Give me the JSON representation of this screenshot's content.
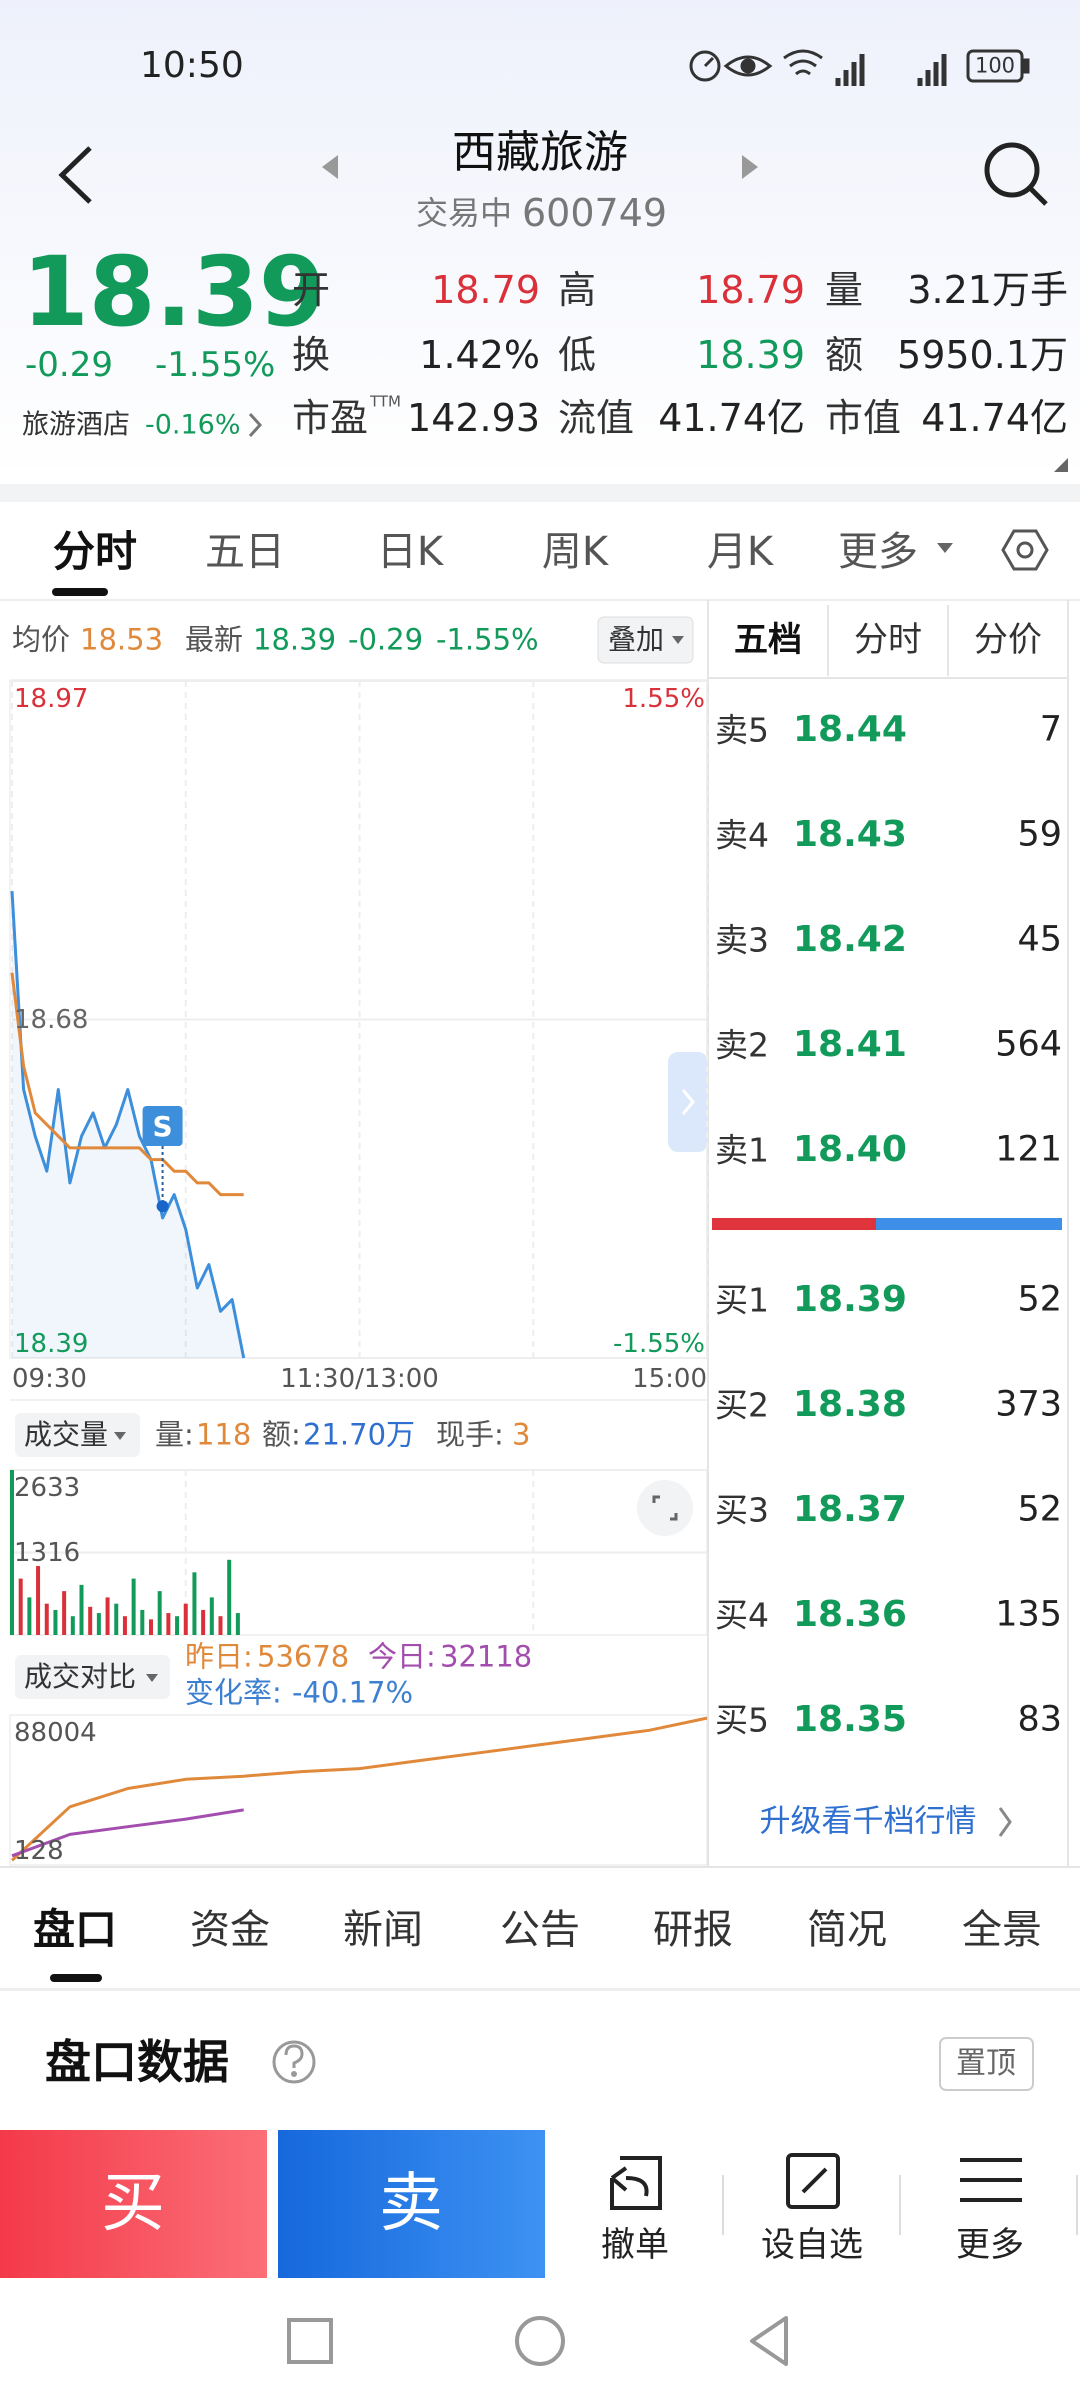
{
  "status_bar": {
    "time": "10:50",
    "battery": "100"
  },
  "header": {
    "title": "西藏旅游",
    "status": "交易中",
    "code": "600749"
  },
  "quote": {
    "price": "18.39",
    "change": "-0.29",
    "change_pct": "-1.55%",
    "sector": "旅游酒店",
    "sector_change": "-0.16%",
    "fields": [
      {
        "label": "开",
        "value": "18.79",
        "color": "#d9303a"
      },
      {
        "label": "高",
        "value": "18.79",
        "color": "#d9303a"
      },
      {
        "label": "量",
        "value": "3.21万手",
        "color": "#222222"
      },
      {
        "label": "换",
        "value": "1.42%",
        "color": "#222222"
      },
      {
        "label": "低",
        "value": "18.39",
        "color": "#129a5b"
      },
      {
        "label": "额",
        "value": "5950.1万",
        "color": "#222222"
      },
      {
        "label": "市盈",
        "sup": "TTM",
        "value": "142.93",
        "color": "#222222"
      },
      {
        "label": "流值",
        "value": "41.74亿",
        "color": "#222222"
      },
      {
        "label": "市值",
        "value": "41.74亿",
        "color": "#222222"
      }
    ]
  },
  "chart_tabs": [
    "分时",
    "五日",
    "日K",
    "周K",
    "月K",
    "更多"
  ],
  "info": {
    "avg": "18.53",
    "last": "18.39",
    "change": "-0.29",
    "change_pct": "-1.55%",
    "overlay": "叠加"
  },
  "chart_data": [
    {
      "type": "line",
      "x": [
        0,
        4,
        8,
        12,
        16,
        20,
        24,
        28,
        32,
        36,
        40,
        44,
        48,
        52,
        56,
        60,
        64,
        68,
        72,
        76,
        80
      ],
      "xlim": [
        0,
        240
      ],
      "xticks": [
        {
          "value": 0,
          "label": "09:30"
        },
        {
          "value": 120,
          "label": "11:30/13:00"
        },
        {
          "value": 240,
          "label": "15:00"
        }
      ],
      "ylim": [
        18.39,
        18.97
      ],
      "yticks": [
        18.97,
        18.68,
        18.39
      ],
      "y2lim": [
        -1.55,
        1.55
      ],
      "y2ticks": [
        {
          "value": 1.55,
          "label": "1.55%"
        },
        {
          "value": -1.55,
          "label": "-1.55%"
        }
      ],
      "grid": true,
      "area": true,
      "series": [
        {
          "name": "最新",
          "color": "#3d8fdb",
          "values": [
            18.79,
            18.62,
            18.58,
            18.55,
            18.62,
            18.54,
            18.58,
            18.6,
            18.57,
            18.59,
            18.62,
            18.58,
            18.56,
            18.51,
            18.53,
            18.5,
            18.45,
            18.47,
            18.43,
            18.44,
            18.39
          ]
        },
        {
          "name": "均价",
          "color": "#e0893b",
          "values": [
            18.72,
            18.64,
            18.6,
            18.59,
            18.58,
            18.57,
            18.57,
            18.57,
            18.57,
            18.57,
            18.57,
            18.57,
            18.56,
            18.56,
            18.55,
            18.55,
            18.54,
            18.54,
            18.53,
            18.53,
            18.53
          ]
        }
      ],
      "annotations": [
        {
          "text": "S",
          "x": 52,
          "y": 18.52
        }
      ]
    },
    {
      "type": "bar",
      "x": [
        0,
        3,
        6,
        9,
        12,
        15,
        18,
        21,
        24,
        27,
        30,
        33,
        36,
        39,
        42,
        45,
        48,
        51,
        54,
        57,
        60,
        63,
        66,
        69,
        72,
        75,
        78
      ],
      "values": [
        2633,
        900,
        600,
        1100,
        500,
        400,
        700,
        300,
        800,
        450,
        350,
        600,
        500,
        300,
        900,
        400,
        250,
        700,
        350,
        300,
        500,
        1000,
        400,
        600,
        300,
        1200,
        350
      ],
      "bar_colors": [
        "#129a5b",
        "#d9303a",
        "#129a5b",
        "#d9303a",
        "#d9303a",
        "#129a5b",
        "#d9303a",
        "#129a5b",
        "#129a5b",
        "#d9303a",
        "#129a5b",
        "#d9303a",
        "#129a5b",
        "#d9303a",
        "#129a5b",
        "#129a5b",
        "#d9303a",
        "#129a5b",
        "#d9303a",
        "#129a5b",
        "#d9303a",
        "#129a5b",
        "#d9303a",
        "#129a5b",
        "#d9303a",
        "#129a5b",
        "#129a5b"
      ],
      "xlim": [
        0,
        240
      ],
      "ylim": [
        0,
        2633
      ],
      "yticks": [
        2633,
        1316
      ],
      "grid": true
    },
    {
      "type": "line",
      "x": [
        0,
        20,
        40,
        60,
        80,
        100,
        120,
        140,
        160,
        180,
        200,
        220,
        240
      ],
      "xlim": [
        0,
        240
      ],
      "ylim": [
        128,
        88004
      ],
      "yticks": [
        88004,
        128
      ],
      "grid": false,
      "series": [
        {
          "name": "昨日:",
          "color": "#e0893b",
          "values": [
            2800,
            34200,
            44960,
            50340,
            52140,
            54830,
            56620,
            61100,
            65580,
            70070,
            74550,
            79040,
            86210
          ]
        },
        {
          "name": "今日:",
          "color": "#a34eae",
          "values": [
            5500,
            18060,
            22540,
            27030,
            32410,
            null,
            null,
            null,
            null,
            null,
            null,
            null,
            null
          ]
        }
      ]
    }
  ],
  "volume_info": {
    "selector": "成交量",
    "vol_label": "量:",
    "vol": "118",
    "amt_label": "额:",
    "amt": "21.70万",
    "hand_label": "现手:",
    "hand": "3"
  },
  "compare_info": {
    "selector": "成交对比",
    "yesterday": "53678",
    "today": "32118",
    "rate_label": "变化率:",
    "rate": "-40.17%"
  },
  "order_book": {
    "tabs": [
      "五档",
      "分时",
      "分价"
    ],
    "asks": [
      {
        "label": "卖5",
        "price": "18.44",
        "volume": "7"
      },
      {
        "label": "卖4",
        "price": "18.43",
        "volume": "59"
      },
      {
        "label": "卖3",
        "price": "18.42",
        "volume": "45"
      },
      {
        "label": "卖2",
        "price": "18.41",
        "volume": "564"
      },
      {
        "label": "卖1",
        "price": "18.40",
        "volume": "121"
      }
    ],
    "bids": [
      {
        "label": "买1",
        "price": "18.39",
        "volume": "52"
      },
      {
        "label": "买2",
        "price": "18.38",
        "volume": "373"
      },
      {
        "label": "买3",
        "price": "18.37",
        "volume": "52"
      },
      {
        "label": "买4",
        "price": "18.36",
        "volume": "135"
      },
      {
        "label": "买5",
        "price": "18.35",
        "volume": "83"
      }
    ],
    "upgrade": "升级看千档行情"
  },
  "bottom_tabs": [
    "盘口",
    "资金",
    "新闻",
    "公告",
    "研报",
    "简况",
    "全景"
  ],
  "section": {
    "title": "盘口数据",
    "pin": "置顶"
  },
  "actions": {
    "buy": "买",
    "sell": "卖",
    "items": [
      "撤单",
      "设自选",
      "更多"
    ]
  }
}
